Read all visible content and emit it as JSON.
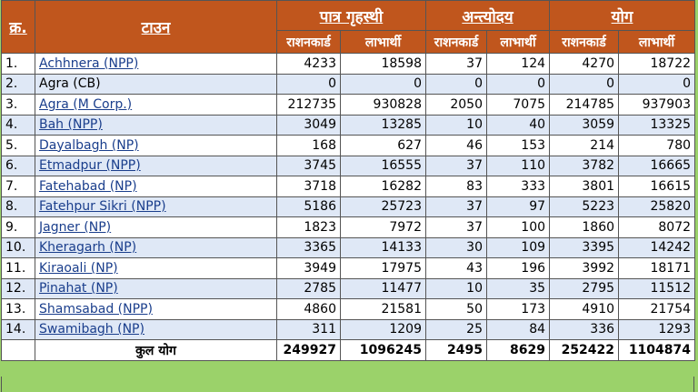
{
  "headers": {
    "sn": "क्र.",
    "town": "टाउन",
    "group1": "पात्र गृहस्थी",
    "group2": "अन्त्योदय",
    "group3": "योग",
    "ration_card": "राशनकार्ड",
    "beneficiary": "लाभार्थी"
  },
  "rows": [
    {
      "sn": "1.",
      "town": "Achhnera (NPP)",
      "link": true,
      "pg_rc": "4233",
      "pg_lb": "18598",
      "an_rc": "37",
      "an_lb": "124",
      "tot_rc": "4270",
      "tot_lb": "18722"
    },
    {
      "sn": "2.",
      "town": "Agra (CB)",
      "link": false,
      "pg_rc": "0",
      "pg_lb": "0",
      "an_rc": "0",
      "an_lb": "0",
      "tot_rc": "0",
      "tot_lb": "0"
    },
    {
      "sn": "3.",
      "town": "Agra (M Corp.)",
      "link": true,
      "pg_rc": "212735",
      "pg_lb": "930828",
      "an_rc": "2050",
      "an_lb": "7075",
      "tot_rc": "214785",
      "tot_lb": "937903"
    },
    {
      "sn": "4.",
      "town": "Bah (NPP)",
      "link": true,
      "pg_rc": "3049",
      "pg_lb": "13285",
      "an_rc": "10",
      "an_lb": "40",
      "tot_rc": "3059",
      "tot_lb": "13325"
    },
    {
      "sn": "5.",
      "town": "Dayalbagh (NP)",
      "link": true,
      "pg_rc": "168",
      "pg_lb": "627",
      "an_rc": "46",
      "an_lb": "153",
      "tot_rc": "214",
      "tot_lb": "780"
    },
    {
      "sn": "6.",
      "town": "Etmadpur (NPP)",
      "link": true,
      "pg_rc": "3745",
      "pg_lb": "16555",
      "an_rc": "37",
      "an_lb": "110",
      "tot_rc": "3782",
      "tot_lb": "16665"
    },
    {
      "sn": "7.",
      "town": "Fatehabad (NP)",
      "link": true,
      "pg_rc": "3718",
      "pg_lb": "16282",
      "an_rc": "83",
      "an_lb": "333",
      "tot_rc": "3801",
      "tot_lb": "16615"
    },
    {
      "sn": "8.",
      "town": "Fatehpur Sikri (NPP)",
      "link": true,
      "pg_rc": "5186",
      "pg_lb": "25723",
      "an_rc": "37",
      "an_lb": "97",
      "tot_rc": "5223",
      "tot_lb": "25820"
    },
    {
      "sn": "9.",
      "town": "Jagner (NP)",
      "link": true,
      "pg_rc": "1823",
      "pg_lb": "7972",
      "an_rc": "37",
      "an_lb": "100",
      "tot_rc": "1860",
      "tot_lb": "8072"
    },
    {
      "sn": "10.",
      "town": "Kheragarh (NP)",
      "link": true,
      "pg_rc": "3365",
      "pg_lb": "14133",
      "an_rc": "30",
      "an_lb": "109",
      "tot_rc": "3395",
      "tot_lb": "14242"
    },
    {
      "sn": "11.",
      "town": "Kiraoali (NP)",
      "link": true,
      "pg_rc": "3949",
      "pg_lb": "17975",
      "an_rc": "43",
      "an_lb": "196",
      "tot_rc": "3992",
      "tot_lb": "18171"
    },
    {
      "sn": "12.",
      "town": "Pinahat (NP)",
      "link": true,
      "pg_rc": "2785",
      "pg_lb": "11477",
      "an_rc": "10",
      "an_lb": "35",
      "tot_rc": "2795",
      "tot_lb": "11512"
    },
    {
      "sn": "13.",
      "town": "Shamsabad (NPP)",
      "link": true,
      "pg_rc": "4860",
      "pg_lb": "21581",
      "an_rc": "50",
      "an_lb": "173",
      "tot_rc": "4910",
      "tot_lb": "21754"
    },
    {
      "sn": "14.",
      "town": "Swamibagh (NP)",
      "link": true,
      "pg_rc": "311",
      "pg_lb": "1209",
      "an_rc": "25",
      "an_lb": "84",
      "tot_rc": "336",
      "tot_lb": "1293"
    }
  ],
  "totals": {
    "label": "कुल योग",
    "pg_rc": "249927",
    "pg_lb": "1096245",
    "an_rc": "2495",
    "an_lb": "8629",
    "tot_rc": "252422",
    "tot_lb": "1104874"
  },
  "colors": {
    "header_bg": "#c0561d",
    "alt_row": "#dfe8f6",
    "link": "#1a3e8c",
    "footer_band": "#9bd26a"
  }
}
